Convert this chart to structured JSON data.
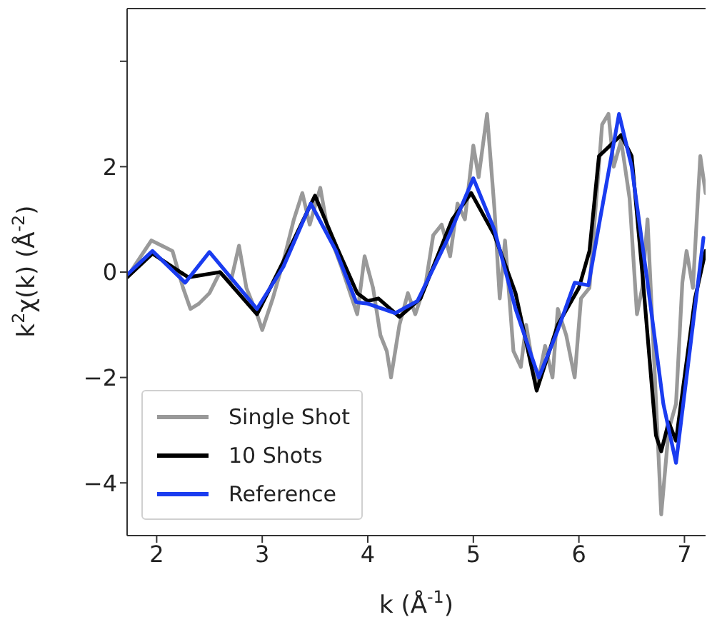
{
  "chart_data": {
    "type": "line",
    "xlabel": "k (Å$^{-1}$)",
    "ylabel": "k$^{2}$χ(k) (Å$^{-2}$)",
    "xlim": [
      1.72,
      7.2
    ],
    "xticks": [
      2,
      3,
      4,
      5,
      6,
      7
    ],
    "ylim": [
      -5,
      5
    ],
    "yticks": [
      -4,
      -2,
      0,
      2,
      {
        "value": 4,
        "label": null
      }
    ],
    "legend": "bottom left",
    "marker": "none",
    "line_style": "solid",
    "series": [
      {
        "name": "Single Shot",
        "color": "#999999",
        "x": [
          1.72,
          1.85,
          1.95,
          2.05,
          2.15,
          2.25,
          2.32,
          2.4,
          2.5,
          2.6,
          2.7,
          2.78,
          2.85,
          2.95,
          3.0,
          3.1,
          3.2,
          3.3,
          3.38,
          3.45,
          3.55,
          3.62,
          3.75,
          3.85,
          3.9,
          3.97,
          4.05,
          4.12,
          4.18,
          4.22,
          4.3,
          4.38,
          4.45,
          4.55,
          4.62,
          4.7,
          4.78,
          4.85,
          4.92,
          5.0,
          5.05,
          5.13,
          5.2,
          5.25,
          5.3,
          5.38,
          5.45,
          5.5,
          5.55,
          5.6,
          5.68,
          5.75,
          5.8,
          5.88,
          5.96,
          6.02,
          6.1,
          6.15,
          6.22,
          6.28,
          6.33,
          6.4,
          6.48,
          6.55,
          6.6,
          6.65,
          6.72,
          6.78,
          6.85,
          6.92,
          6.98,
          7.02,
          7.08,
          7.15,
          7.2
        ],
        "values": [
          -0.1,
          0.3,
          0.6,
          0.5,
          0.4,
          -0.3,
          -0.7,
          -0.6,
          -0.4,
          0.0,
          -0.2,
          0.5,
          -0.3,
          -0.8,
          -1.1,
          -0.5,
          0.2,
          1.0,
          1.5,
          0.9,
          1.6,
          0.8,
          0.1,
          -0.5,
          -0.8,
          0.3,
          -0.3,
          -1.2,
          -1.5,
          -2.0,
          -1.0,
          -0.4,
          -0.8,
          -0.2,
          0.7,
          0.9,
          0.3,
          1.3,
          1.0,
          2.4,
          1.8,
          3.0,
          1.2,
          -0.5,
          0.6,
          -1.5,
          -1.8,
          -1.0,
          -1.6,
          -2.2,
          -1.4,
          -2.0,
          -0.7,
          -1.2,
          -2.0,
          -0.5,
          -0.3,
          1.0,
          2.8,
          3.0,
          2.0,
          2.5,
          1.4,
          -0.8,
          -0.3,
          1.0,
          -2.0,
          -4.6,
          -3.0,
          -2.5,
          -0.2,
          0.4,
          -0.3,
          2.2,
          1.5
        ]
      },
      {
        "name": "10 Shots",
        "color": "#000000",
        "x": [
          1.72,
          1.96,
          2.3,
          2.6,
          2.95,
          3.2,
          3.5,
          3.7,
          3.9,
          4.0,
          4.1,
          4.3,
          4.5,
          4.8,
          4.98,
          5.2,
          5.4,
          5.6,
          5.8,
          6.0,
          6.1,
          6.19,
          6.4,
          6.5,
          6.6,
          6.73,
          6.78,
          6.85,
          6.92,
          7.1,
          7.2
        ],
        "values": [
          -0.1,
          0.35,
          -0.1,
          0.0,
          -0.8,
          0.2,
          1.45,
          0.5,
          -0.4,
          -0.55,
          -0.5,
          -0.85,
          -0.5,
          1.0,
          1.5,
          0.7,
          -0.4,
          -2.25,
          -1.0,
          -0.3,
          0.4,
          2.2,
          2.6,
          2.2,
          0.0,
          -3.1,
          -3.4,
          -2.85,
          -3.2,
          -0.5,
          0.4
        ]
      },
      {
        "name": "Reference",
        "color": "#1a3cf0",
        "x": [
          1.72,
          1.96,
          2.27,
          2.5,
          2.95,
          3.2,
          3.46,
          3.7,
          3.89,
          4.0,
          4.26,
          4.47,
          4.75,
          5.0,
          5.2,
          5.34,
          5.4,
          5.62,
          5.8,
          5.96,
          6.09,
          6.2,
          6.38,
          6.5,
          6.64,
          6.8,
          6.92,
          7.05,
          7.18
        ],
        "values": [
          -0.05,
          0.4,
          -0.2,
          0.38,
          -0.7,
          0.1,
          1.3,
          0.4,
          -0.57,
          -0.6,
          -0.78,
          -0.55,
          0.6,
          1.78,
          0.8,
          -0.25,
          -0.7,
          -2.0,
          -1.1,
          -0.2,
          -0.25,
          1.0,
          3.0,
          2.0,
          -0.05,
          -2.5,
          -3.62,
          -1.5,
          0.65
        ]
      }
    ]
  }
}
